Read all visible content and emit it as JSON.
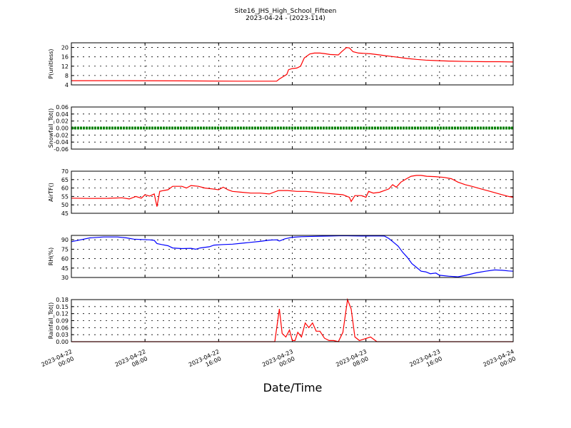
{
  "figure": {
    "title": "Site16_JHS_High_School_Fifteen",
    "subtitle": "2023-04-24 - (2023-114)",
    "xlabel": "Date/Time"
  },
  "chart_data": {
    "type": "line",
    "x_tick_labels": [
      [
        "2023-04-22",
        "00:00"
      ],
      [
        "2023-04-22",
        "08:00"
      ],
      [
        "2023-04-22",
        "16:00"
      ],
      [
        "2023-04-23",
        "00:00"
      ],
      [
        "2023-04-23",
        "08:00"
      ],
      [
        "2023-04-23",
        "16:00"
      ],
      [
        "2023-04-24",
        "00:00"
      ]
    ],
    "x_range_hours": [
      0,
      48
    ],
    "grid": true,
    "panels": [
      {
        "ylabel": "P(unitless)",
        "color": "#ff0000",
        "ylim": [
          4,
          22
        ],
        "yticks": [
          "4",
          "8",
          "12",
          "16",
          "20"
        ],
        "ytick_values": [
          4,
          8,
          12,
          16,
          20
        ],
        "points": [
          [
            0,
            5.8
          ],
          [
            6,
            5.8
          ],
          [
            12,
            5.7
          ],
          [
            18,
            5.6
          ],
          [
            22.3,
            5.6
          ],
          [
            22.6,
            6.5
          ],
          [
            23,
            7.5
          ],
          [
            23.4,
            8.5
          ],
          [
            23.6,
            10.5
          ],
          [
            24,
            11
          ],
          [
            24.5,
            11.2
          ],
          [
            24.9,
            12
          ],
          [
            25.3,
            15.5
          ],
          [
            25.9,
            17.2
          ],
          [
            26.4,
            17.6
          ],
          [
            27,
            17.6
          ],
          [
            27.5,
            17.4
          ],
          [
            28.1,
            17
          ],
          [
            29,
            16.8
          ],
          [
            29.4,
            18.3
          ],
          [
            29.9,
            20
          ],
          [
            30.2,
            19.8
          ],
          [
            30.6,
            18.2
          ],
          [
            31.2,
            17.6
          ],
          [
            31.8,
            17.5
          ],
          [
            32.5,
            17.3
          ],
          [
            33.5,
            16.8
          ],
          [
            34.5,
            16.3
          ],
          [
            35.5,
            15.8
          ],
          [
            36.5,
            15.3
          ],
          [
            37.5,
            14.9
          ],
          [
            38.5,
            14.6
          ],
          [
            39.5,
            14.4
          ],
          [
            41,
            14.2
          ],
          [
            43,
            14.0
          ],
          [
            45,
            13.9
          ],
          [
            46.5,
            13.9
          ],
          [
            48,
            13.8
          ]
        ]
      },
      {
        "ylabel": "Snowfall_Tot()",
        "color": "#008000",
        "ylim": [
          -0.06,
          0.06
        ],
        "yticks": [
          "-0.06",
          "-0.04",
          "-0.02",
          "0.00",
          "0.02",
          "0.04",
          "0.06"
        ],
        "ytick_values": [
          -0.06,
          -0.04,
          -0.02,
          0.0,
          0.02,
          0.04,
          0.06
        ],
        "points": [
          [
            0,
            0
          ],
          [
            48,
            0
          ]
        ]
      },
      {
        "ylabel": "AirTF()",
        "color": "#ff0000",
        "ylim": [
          45,
          70
        ],
        "yticks": [
          "45",
          "50",
          "55",
          "60",
          "65",
          "70"
        ],
        "ytick_values": [
          45,
          50,
          55,
          60,
          65,
          70
        ],
        "points": [
          [
            0,
            54
          ],
          [
            2,
            53.8
          ],
          [
            4,
            53.9
          ],
          [
            5.5,
            54.2
          ],
          [
            6.3,
            53.5
          ],
          [
            7,
            55
          ],
          [
            7.6,
            54
          ],
          [
            8,
            56
          ],
          [
            8.5,
            55.2
          ],
          [
            9,
            56.5
          ],
          [
            9.3,
            49
          ],
          [
            9.6,
            58
          ],
          [
            10,
            58.5
          ],
          [
            10.5,
            59
          ],
          [
            11,
            61
          ],
          [
            12,
            61
          ],
          [
            12.5,
            60
          ],
          [
            13,
            61.5
          ],
          [
            13.8,
            61
          ],
          [
            14.5,
            60
          ],
          [
            15.3,
            59.5
          ],
          [
            16,
            59
          ],
          [
            16.5,
            60.5
          ],
          [
            17,
            59
          ],
          [
            17.5,
            58
          ],
          [
            18.5,
            57.5
          ],
          [
            19.5,
            57
          ],
          [
            20.5,
            57
          ],
          [
            21.5,
            56.5
          ],
          [
            22.5,
            58.5
          ],
          [
            23.5,
            58.5
          ],
          [
            24.5,
            58
          ],
          [
            25.5,
            58
          ],
          [
            26.5,
            57.5
          ],
          [
            27.5,
            57
          ],
          [
            28.5,
            56.5
          ],
          [
            29.5,
            56
          ],
          [
            30.2,
            54.5
          ],
          [
            30.4,
            52
          ],
          [
            30.8,
            55.5
          ],
          [
            31.5,
            55.5
          ],
          [
            31.8,
            55
          ],
          [
            32,
            54.5
          ],
          [
            32.3,
            58
          ],
          [
            32.8,
            57
          ],
          [
            33.5,
            57.5
          ],
          [
            34.5,
            59.5
          ],
          [
            34.9,
            62
          ],
          [
            35.3,
            60.5
          ],
          [
            35.8,
            63.5
          ],
          [
            36.4,
            65.5
          ],
          [
            36.9,
            67
          ],
          [
            37.5,
            67.5
          ],
          [
            38,
            67.5
          ],
          [
            38.6,
            67
          ],
          [
            39.5,
            66.8
          ],
          [
            40.5,
            66.3
          ],
          [
            41.3,
            65.5
          ],
          [
            42,
            63.5
          ],
          [
            42.8,
            62
          ],
          [
            43.5,
            61
          ],
          [
            44.5,
            59.5
          ],
          [
            45.5,
            58
          ],
          [
            46.5,
            56.5
          ],
          [
            47.5,
            55
          ],
          [
            48,
            54.5
          ]
        ]
      },
      {
        "ylabel": "RH(%)",
        "color": "#0000ff",
        "ylim": [
          30,
          97
        ],
        "yticks": [
          "30",
          "45",
          "60",
          "75",
          "90"
        ],
        "ytick_values": [
          30,
          45,
          60,
          75,
          90
        ],
        "points": [
          [
            0,
            87
          ],
          [
            1,
            90
          ],
          [
            2,
            93
          ],
          [
            3.5,
            94.5
          ],
          [
            5,
            94.5
          ],
          [
            6,
            93
          ],
          [
            6.8,
            91
          ],
          [
            7.5,
            90.5
          ],
          [
            8.5,
            90
          ],
          [
            9,
            89
          ],
          [
            9.3,
            84
          ],
          [
            9.8,
            82.5
          ],
          [
            10.5,
            80.5
          ],
          [
            11,
            77
          ],
          [
            12,
            76
          ],
          [
            13,
            76.5
          ],
          [
            13.5,
            75
          ],
          [
            14,
            77
          ],
          [
            15,
            79
          ],
          [
            15.5,
            81.5
          ],
          [
            16.5,
            82.5
          ],
          [
            17.5,
            83
          ],
          [
            18.5,
            84.5
          ],
          [
            19.5,
            86
          ],
          [
            20.5,
            87.5
          ],
          [
            21.5,
            89.5
          ],
          [
            22.3,
            90
          ],
          [
            22.6,
            88
          ],
          [
            23.2,
            91.5
          ],
          [
            24,
            94
          ],
          [
            25,
            95
          ],
          [
            26.5,
            95.5
          ],
          [
            28,
            96
          ],
          [
            29.5,
            96.5
          ],
          [
            30.5,
            96.3
          ],
          [
            32,
            96
          ],
          [
            33,
            96.3
          ],
          [
            34,
            96
          ],
          [
            34.5,
            92
          ],
          [
            35,
            86
          ],
          [
            35.5,
            80
          ],
          [
            36,
            70
          ],
          [
            36.5,
            62
          ],
          [
            37,
            52
          ],
          [
            37.5,
            46
          ],
          [
            38,
            40
          ],
          [
            38.5,
            39
          ],
          [
            39,
            36
          ],
          [
            39.6,
            37
          ],
          [
            40,
            33.5
          ],
          [
            41,
            32
          ],
          [
            42,
            31
          ],
          [
            43,
            34
          ],
          [
            44,
            37.5
          ],
          [
            45,
            40
          ],
          [
            46,
            42
          ],
          [
            46.8,
            41.5
          ],
          [
            47.5,
            40.5
          ],
          [
            48,
            40
          ]
        ]
      },
      {
        "ylabel": "Rainfall_Tot()",
        "color": "#ff0000",
        "ylim": [
          0,
          0.18
        ],
        "yticks": [
          "0.00",
          "0.03",
          "0.06",
          "0.09",
          "0.12",
          "0.15",
          "0.18"
        ],
        "ytick_values": [
          0,
          0.03,
          0.06,
          0.09,
          0.12,
          0.15,
          0.18
        ],
        "points": [
          [
            0,
            0
          ],
          [
            22.1,
            0
          ],
          [
            22.6,
            0.14
          ],
          [
            22.9,
            0.035
          ],
          [
            23.3,
            0.02
          ],
          [
            23.7,
            0.05
          ],
          [
            24,
            0.005
          ],
          [
            24.3,
            0.005
          ],
          [
            24.6,
            0.04
          ],
          [
            25,
            0.02
          ],
          [
            25.4,
            0.08
          ],
          [
            25.8,
            0.06
          ],
          [
            26.2,
            0.08
          ],
          [
            26.6,
            0.045
          ],
          [
            27,
            0.045
          ],
          [
            27.5,
            0.015
          ],
          [
            28,
            0.005
          ],
          [
            28.5,
            0.005
          ],
          [
            29,
            0
          ],
          [
            29.5,
            0.04
          ],
          [
            30,
            0.18
          ],
          [
            30.4,
            0.14
          ],
          [
            30.8,
            0.02
          ],
          [
            31.3,
            0.005
          ],
          [
            32.5,
            0.02
          ],
          [
            33.2,
            0
          ],
          [
            48,
            0
          ]
        ]
      }
    ]
  }
}
